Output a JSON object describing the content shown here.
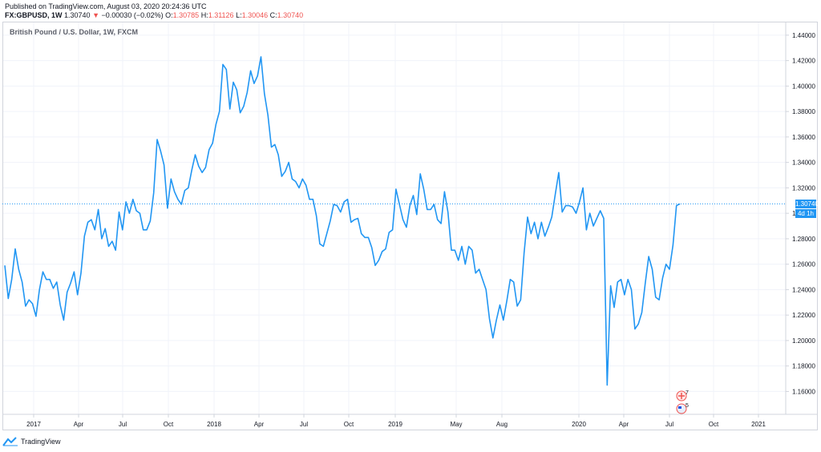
{
  "header": {
    "published": "Published on TradingView.com, August 03, 2020 20:24:36 UTC",
    "symbol": "FX:GBPUSD, 1W",
    "last": "1.30740",
    "change_arrow": "▼",
    "change": "−0.00030 (−0.02%)",
    "o_label": "O:",
    "o_value": "1.30785",
    "h_label": "H:",
    "h_value": "1.31126",
    "l_label": "L:",
    "l_value": "1.30046",
    "c_label": "C:",
    "c_value": "1.30740"
  },
  "legend_title": "British Pound / U.S. Dollar, 1W, FXCM",
  "price_tag": {
    "value": "1.30740",
    "countdown": "4d 1h"
  },
  "events": [
    {
      "count": "7",
      "icon": "uk-flag-icon"
    },
    {
      "count": "5",
      "icon": "us-flag-icon"
    }
  ],
  "footer": {
    "brand": "TradingView"
  },
  "colors": {
    "line": "#2196f3",
    "grid": "#f0f3fa",
    "axis_text": "#131722",
    "tag": "#2196f3"
  },
  "chart_data": {
    "type": "line",
    "title": "British Pound / U.S. Dollar, 1W, FXCM",
    "xlabel": "",
    "ylabel": "",
    "ylim": [
      1.142,
      1.45
    ],
    "yticks": [
      "1.44000",
      "1.42000",
      "1.40000",
      "1.38000",
      "1.36000",
      "1.34000",
      "1.32000",
      "1.30000",
      "1.28000",
      "1.26000",
      "1.24000",
      "1.22000",
      "1.20000",
      "1.18000",
      "1.16000"
    ],
    "xticks": [
      "2017",
      "Apr",
      "Jul",
      "Oct",
      "2018",
      "Apr",
      "Jul",
      "Oct",
      "2019",
      "May",
      "Aug",
      "2020",
      "Apr",
      "Jul",
      "Oct",
      "2021"
    ],
    "grid": true,
    "last_value": 1.3074,
    "series": [
      {
        "values": [
          1.259,
          1.233,
          1.248,
          1.272,
          1.256,
          1.246,
          1.227,
          1.232,
          1.229,
          1.219,
          1.24,
          1.254,
          1.248,
          1.248,
          1.241,
          1.246,
          1.228,
          1.216,
          1.238,
          1.245,
          1.254,
          1.236,
          1.253,
          1.282,
          1.293,
          1.295,
          1.287,
          1.303,
          1.28,
          1.288,
          1.274,
          1.278,
          1.271,
          1.301,
          1.287,
          1.309,
          1.3,
          1.311,
          1.302,
          1.3,
          1.287,
          1.287,
          1.294,
          1.316,
          1.358,
          1.349,
          1.338,
          1.304,
          1.327,
          1.317,
          1.311,
          1.307,
          1.318,
          1.32,
          1.334,
          1.346,
          1.337,
          1.332,
          1.336,
          1.35,
          1.355,
          1.37,
          1.38,
          1.417,
          1.413,
          1.382,
          1.403,
          1.397,
          1.379,
          1.384,
          1.395,
          1.412,
          1.402,
          1.408,
          1.423,
          1.394,
          1.377,
          1.352,
          1.354,
          1.346,
          1.329,
          1.333,
          1.34,
          1.327,
          1.325,
          1.32,
          1.327,
          1.322,
          1.311,
          1.311,
          1.298,
          1.276,
          1.274,
          1.284,
          1.294,
          1.307,
          1.306,
          1.301,
          1.309,
          1.311,
          1.293,
          1.295,
          1.296,
          1.284,
          1.281,
          1.281,
          1.273,
          1.259,
          1.263,
          1.27,
          1.272,
          1.285,
          1.287,
          1.319,
          1.307,
          1.295,
          1.289,
          1.306,
          1.314,
          1.299,
          1.331,
          1.319,
          1.303,
          1.303,
          1.307,
          1.295,
          1.292,
          1.317,
          1.301,
          1.271,
          1.271,
          1.263,
          1.274,
          1.26,
          1.274,
          1.271,
          1.253,
          1.256,
          1.248,
          1.24,
          1.217,
          1.202,
          1.216,
          1.228,
          1.216,
          1.231,
          1.248,
          1.246,
          1.227,
          1.232,
          1.269,
          1.297,
          1.284,
          1.293,
          1.28,
          1.293,
          1.282,
          1.289,
          1.297,
          1.315,
          1.332,
          1.301,
          1.306,
          1.306,
          1.305,
          1.3,
          1.309,
          1.32,
          1.287,
          1.3,
          1.29,
          1.296,
          1.302,
          1.296,
          1.165,
          1.243,
          1.226,
          1.246,
          1.248,
          1.236,
          1.248,
          1.24,
          1.209,
          1.213,
          1.222,
          1.245,
          1.266,
          1.256,
          1.234,
          1.232,
          1.249,
          1.26,
          1.256,
          1.275,
          1.306,
          1.3074
        ]
      }
    ]
  }
}
